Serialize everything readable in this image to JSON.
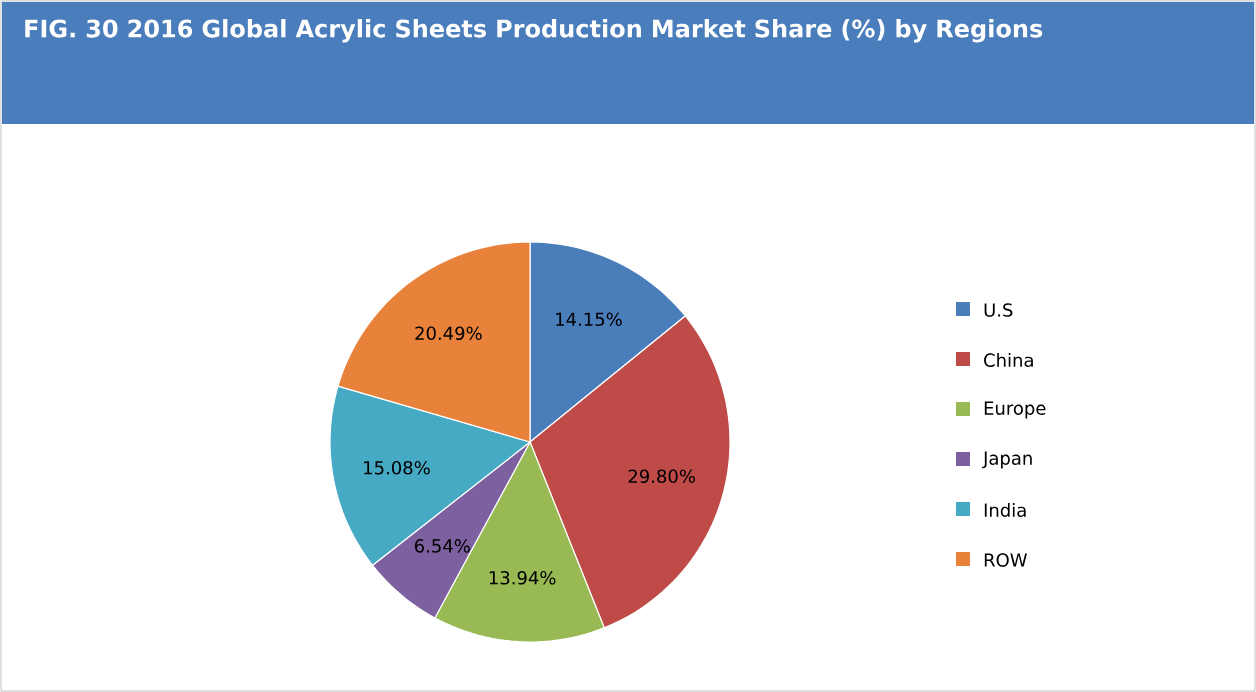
{
  "chart_data": {
    "type": "pie",
    "title": "FIG. 30    2016 Global Acrylic Sheets Production Market Share (%) by Regions",
    "categories": [
      "U.S",
      "China",
      "Europe",
      "Japan",
      "India",
      "ROW"
    ],
    "values": [
      14.15,
      29.8,
      13.94,
      6.54,
      15.08,
      20.49
    ],
    "value_labels": [
      "14.15%",
      "29.80%",
      "13.94%",
      "6.54%",
      "15.08%",
      "20.49%"
    ],
    "colors": [
      "#4a7ebb",
      "#be4b48",
      "#98b954",
      "#7d60a0",
      "#46aac5",
      "#e8823a"
    ],
    "legend": "right"
  }
}
